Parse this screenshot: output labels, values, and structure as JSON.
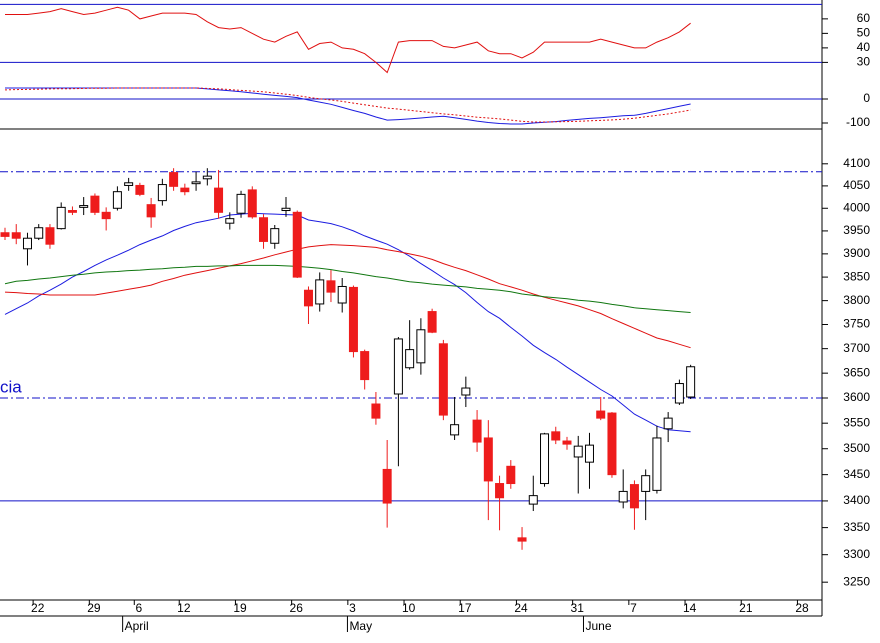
{
  "chart_data": [
    {
      "type": "line",
      "ylim": [
        22,
        73
      ],
      "yticks": [
        30,
        40,
        50,
        60
      ],
      "levels": [
        {
          "value": 70,
          "style": "solid"
        },
        {
          "value": 30,
          "style": "solid"
        }
      ],
      "level_color": "#1010c8",
      "series": [
        {
          "color": "#e01010",
          "style": "solid",
          "values": [
            63,
            63,
            63,
            64,
            65,
            67,
            65,
            63,
            64,
            66,
            68,
            66,
            60,
            62,
            64,
            64,
            64,
            63,
            58,
            54,
            53,
            54,
            50,
            46,
            44,
            48,
            51,
            39,
            43,
            44,
            40,
            39,
            36,
            30,
            23,
            44,
            45,
            45,
            45,
            41,
            40,
            42,
            44,
            38,
            36,
            36,
            33,
            37,
            44,
            44,
            44,
            44,
            44,
            46,
            44,
            42,
            40,
            40,
            44,
            47,
            51,
            57,
            null,
            null,
            null,
            null,
            null,
            null,
            null,
            null,
            null,
            null
          ]
        }
      ]
    },
    {
      "type": "line",
      "ylim": [
        -125,
        100
      ],
      "yticks": [
        -100,
        0
      ],
      "levels": [
        {
          "value": 0,
          "style": "solid"
        }
      ],
      "level_color": "#1010c8",
      "series": [
        {
          "color": "#1c1ce0",
          "style": "solid",
          "values": [
            46,
            46,
            46,
            46,
            46,
            46,
            46,
            46,
            46,
            46,
            46,
            46,
            46,
            46,
            46,
            46,
            46,
            46,
            42,
            38,
            34,
            30,
            25,
            20,
            15,
            11,
            6,
            -4,
            -13,
            -22,
            -35,
            -48,
            -60,
            -75,
            -88,
            -86,
            -83,
            -79,
            -75,
            -72,
            -78,
            -85,
            -92,
            -98,
            -102,
            -104,
            -104,
            -100,
            -97,
            -94,
            -89,
            -85,
            -81,
            -78,
            -74,
            -70,
            -68,
            -60,
            -50,
            -40,
            -30,
            -21,
            null,
            null,
            null,
            null,
            null,
            null,
            null,
            null,
            null,
            null
          ]
        },
        {
          "color": "#e01010",
          "style": "dotted",
          "values": [
            38,
            39,
            40,
            41,
            42,
            43,
            43,
            44,
            45,
            45,
            46,
            46,
            46,
            46,
            46,
            46,
            46,
            46,
            44,
            42,
            39,
            36,
            33,
            30,
            25,
            20,
            14,
            7,
            1,
            -4,
            -10,
            -17,
            -24,
            -31,
            -38,
            -42,
            -47,
            -52,
            -57,
            -62,
            -66,
            -71,
            -76,
            -79,
            -83,
            -88,
            -93,
            -96,
            -96,
            -95,
            -94,
            -93,
            -91,
            -89,
            -87,
            -84,
            -80,
            -74,
            -68,
            -62,
            -54,
            -46,
            null,
            null,
            null,
            null,
            null,
            null,
            null,
            null,
            null,
            null
          ]
        }
      ]
    },
    {
      "type": "candlestick",
      "log_scale": true,
      "ylim": [
        3218,
        4180
      ],
      "yticks": [
        3250,
        3300,
        3350,
        3400,
        3450,
        3500,
        3550,
        3600,
        3650,
        3700,
        3750,
        3800,
        3850,
        3900,
        3950,
        4000,
        4050,
        4100
      ],
      "levels": [
        {
          "value": 4082,
          "style": "dashdot"
        },
        {
          "value": 3600,
          "style": "dashdot"
        },
        {
          "value": 3400,
          "style": "solid"
        }
      ],
      "level_color": "#1010c8",
      "annotation": "cia",
      "annotation_color": "#1010c8",
      "up_color": "#ffffff",
      "down_color": "#ee1c1c",
      "outline_color": "#000000",
      "categories": [
        null,
        null,
        null,
        "22",
        null,
        null,
        null,
        null,
        "29",
        null,
        null,
        null,
        "6",
        null,
        null,
        null,
        "12",
        null,
        null,
        null,
        null,
        "19",
        null,
        null,
        null,
        null,
        "26",
        null,
        null,
        null,
        null,
        "3",
        null,
        null,
        null,
        null,
        "10",
        null,
        null,
        null,
        null,
        "17",
        null,
        null,
        null,
        null,
        "24",
        null,
        null,
        null,
        null,
        "31",
        null,
        null,
        null,
        null,
        "7",
        null,
        null,
        null,
        null,
        "14",
        null,
        null,
        null,
        null,
        "21",
        null,
        null,
        null,
        null,
        "28"
      ],
      "months": [
        null,
        null,
        null,
        null,
        null,
        null,
        null,
        null,
        null,
        null,
        null,
        "April",
        null,
        null,
        null,
        null,
        null,
        null,
        null,
        null,
        null,
        null,
        null,
        null,
        null,
        null,
        null,
        null,
        null,
        null,
        null,
        "May",
        null,
        null,
        null,
        null,
        null,
        null,
        null,
        null,
        null,
        null,
        null,
        null,
        null,
        null,
        null,
        null,
        null,
        null,
        null,
        null,
        "June",
        null,
        null,
        null,
        null,
        null,
        null,
        null,
        null,
        null,
        null,
        null,
        null,
        null,
        null,
        null,
        null,
        null,
        null,
        null
      ],
      "open": [
        3946,
        3946,
        3911,
        3934,
        3957,
        3955,
        3995,
        4002,
        4027,
        3991,
        4000,
        4051,
        4051,
        4008,
        4017,
        4080,
        4045,
        4055,
        4066,
        4045,
        3967,
        3989,
        4041,
        3979,
        3923,
        3995,
        3991,
        3822,
        3793,
        3842,
        3795,
        3828,
        3694,
        3588,
        3460,
        3608,
        3661,
        3671,
        3777,
        3710,
        3527,
        3606,
        3556,
        3521,
        3433,
        3466,
        3331,
        3394,
        3433,
        3533,
        3515,
        3484,
        3474,
        3574,
        3570,
        3398,
        3431,
        3418,
        3420,
        3539,
        3590,
        3602,
        null,
        null,
        null,
        null,
        null,
        null,
        null,
        null,
        null,
        null
      ],
      "high": [
        3957,
        3965,
        3946,
        3965,
        3965,
        4013,
        4004,
        4025,
        4033,
        4002,
        4049,
        4068,
        4057,
        4023,
        4066,
        4090,
        4055,
        4082,
        4090,
        4086,
        3991,
        4039,
        4049,
        3987,
        3963,
        4025,
        3995,
        3830,
        3860,
        3865,
        3848,
        3832,
        3698,
        3612,
        3517,
        3724,
        3759,
        3763,
        3783,
        3718,
        3602,
        3643,
        3576,
        3556,
        3448,
        3478,
        3351,
        3448,
        3531,
        3543,
        3523,
        3525,
        3531,
        3602,
        3572,
        3460,
        3439,
        3460,
        3545,
        3572,
        3637,
        3667,
        null,
        null,
        null,
        null,
        null,
        null,
        null,
        null,
        null,
        null
      ],
      "low": [
        3930,
        3921,
        3875,
        3930,
        3911,
        3953,
        3985,
        3985,
        3985,
        3951,
        3995,
        4039,
        4027,
        3957,
        4006,
        4039,
        4029,
        4039,
        4051,
        3977,
        3953,
        3979,
        3977,
        3911,
        3911,
        3981,
        3848,
        3751,
        3777,
        3797,
        3775,
        3682,
        3617,
        3547,
        3350,
        3466,
        3657,
        3647,
        3732,
        3556,
        3517,
        3582,
        3494,
        3364,
        3345,
        3423,
        3309,
        3381,
        3427,
        3509,
        3498,
        3414,
        3423,
        3556,
        3444,
        3386,
        3346,
        3364,
        3414,
        3513,
        3586,
        3598,
        null,
        null,
        null,
        null,
        null,
        null,
        null,
        null,
        null,
        null
      ],
      "close": [
        3938,
        3934,
        3934,
        3957,
        3921,
        4002,
        3991,
        4006,
        3991,
        3977,
        4037,
        4057,
        4031,
        3981,
        4053,
        4049,
        4037,
        4059,
        4072,
        3991,
        3977,
        4031,
        3981,
        3927,
        3955,
        4000,
        3850,
        3789,
        3844,
        3818,
        3830,
        3694,
        3637,
        3560,
        3396,
        3720,
        3698,
        3739,
        3734,
        3566,
        3547,
        3620,
        3513,
        3438,
        3406,
        3433,
        3325,
        3410,
        3529,
        3517,
        3509,
        3505,
        3507,
        3560,
        3450,
        3418,
        3387,
        3448,
        3521,
        3560,
        3629,
        3663,
        null,
        null,
        null,
        null,
        null,
        null,
        null,
        null,
        null,
        null
      ],
      "series": [
        {
          "color": "#1c1ce0",
          "style": "solid",
          "values": [
            3771,
            3783,
            3795,
            3810,
            3822,
            3835,
            3850,
            3862,
            3875,
            3887,
            3897,
            3908,
            3920,
            3930,
            3939,
            3951,
            3960,
            3968,
            3973,
            3978,
            3985,
            3987,
            3989,
            3988,
            3987,
            3986,
            3985,
            3974,
            3970,
            3966,
            3959,
            3950,
            3939,
            3930,
            3921,
            3909,
            3895,
            3879,
            3864,
            3848,
            3834,
            3817,
            3796,
            3777,
            3763,
            3744,
            3726,
            3707,
            3692,
            3678,
            3662,
            3647,
            3632,
            3617,
            3604,
            3586,
            3568,
            3556,
            3544,
            3537,
            3535,
            3533,
            null,
            null,
            null,
            null,
            null,
            null,
            null,
            null,
            null,
            null
          ]
        },
        {
          "color": "#e01010",
          "style": "solid",
          "values": [
            3818,
            3817,
            3815,
            3814,
            3812,
            3812,
            3812,
            3812,
            3812,
            3816,
            3820,
            3824,
            3828,
            3833,
            3841,
            3847,
            3854,
            3859,
            3864,
            3869,
            3874,
            3879,
            3885,
            3891,
            3898,
            3904,
            3910,
            3915,
            3918,
            3920,
            3919,
            3918,
            3916,
            3914,
            3909,
            3905,
            3900,
            3895,
            3888,
            3879,
            3871,
            3864,
            3855,
            3846,
            3836,
            3829,
            3822,
            3814,
            3807,
            3801,
            3795,
            3789,
            3781,
            3773,
            3762,
            3752,
            3742,
            3732,
            3722,
            3716,
            3709,
            3702,
            null,
            null,
            null,
            null,
            null,
            null,
            null,
            null,
            null,
            null
          ]
        },
        {
          "color": "#117711",
          "style": "solid",
          "values": [
            3836,
            3841,
            3843,
            3846,
            3848,
            3851,
            3854,
            3856,
            3859,
            3861,
            3862,
            3864,
            3865,
            3867,
            3868,
            3870,
            3871,
            3873,
            3873,
            3874,
            3874,
            3875,
            3875,
            3875,
            3875,
            3874,
            3873,
            3871,
            3869,
            3866,
            3862,
            3859,
            3855,
            3851,
            3848,
            3844,
            3840,
            3838,
            3835,
            3833,
            3831,
            3829,
            3826,
            3824,
            3822,
            3819,
            3814,
            3811,
            3808,
            3806,
            3804,
            3801,
            3799,
            3796,
            3792,
            3789,
            3785,
            3783,
            3781,
            3779,
            3777,
            3775,
            null,
            null,
            null,
            null,
            null,
            null,
            null,
            null,
            null,
            null
          ]
        }
      ]
    }
  ]
}
